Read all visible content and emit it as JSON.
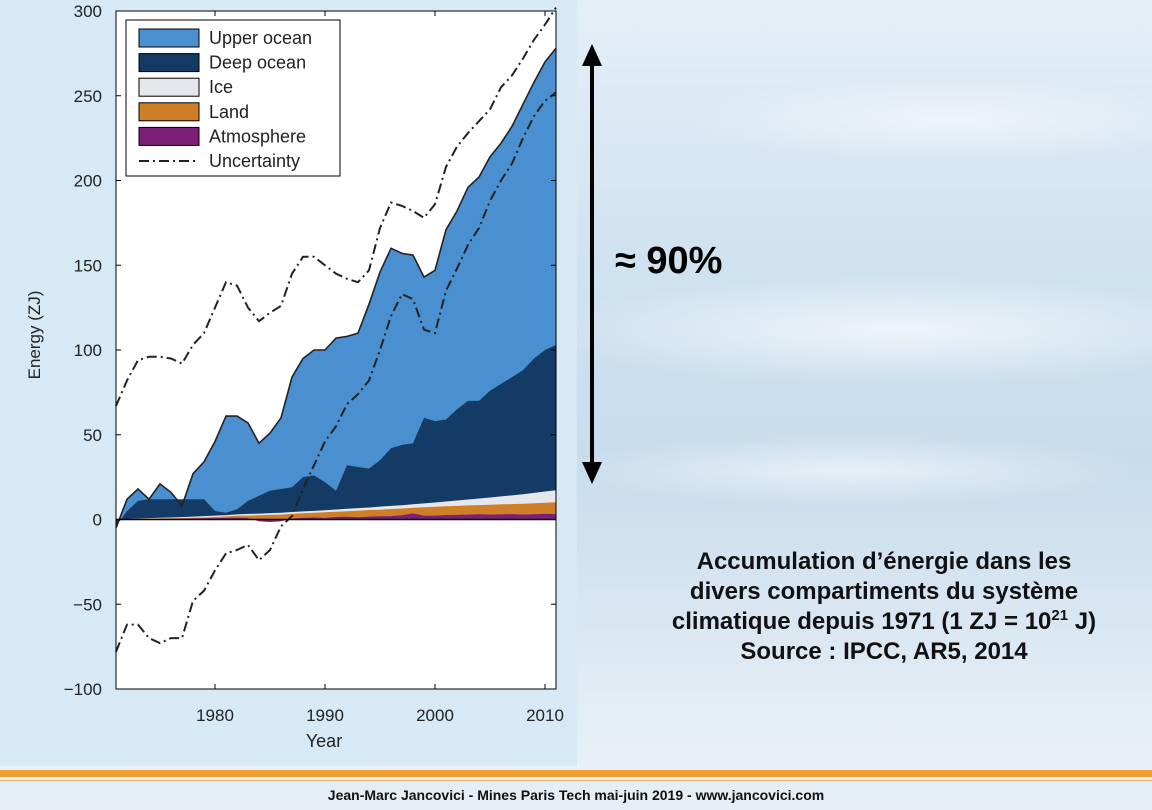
{
  "headline": "≈ 90%",
  "caption": {
    "line1": "Accumulation d’énergie dans les",
    "line2": "divers compartiments du système",
    "line3_prefix": "climatique depuis 1971 (1 ZJ = 10",
    "line3_sup": "21",
    "line3_suffix": " J)",
    "line4": "Source : IPCC, AR5, 2014"
  },
  "footer": "Jean-Marc Jancovici - Mines Paris Tech mai-juin 2019 - www.jancovici.com",
  "colors": {
    "upper_ocean": "#4a90d0",
    "deep_ocean": "#143a66",
    "ice": "#e6e7ea",
    "land": "#cf7f27",
    "atmosphere": "#7c1f78",
    "uncertainty": "#222222"
  },
  "chart_data": {
    "type": "area",
    "xlabel": "Year",
    "ylabel": "Energy (ZJ)",
    "xlim": [
      1971,
      2011
    ],
    "ylim": [
      -100,
      300
    ],
    "x_ticks": [
      1980,
      1990,
      2000,
      2010
    ],
    "y_ticks": [
      300,
      250,
      200,
      150,
      100,
      50,
      0,
      -50,
      -100
    ],
    "stacking": "cumulative",
    "legend_position": "top-left",
    "legend": [
      "Upper ocean",
      "Deep ocean",
      "Ice",
      "Land",
      "Atmosphere",
      "Uncertainty"
    ],
    "x": [
      1971,
      1972,
      1973,
      1974,
      1975,
      1976,
      1977,
      1978,
      1979,
      1980,
      1981,
      1982,
      1983,
      1984,
      1985,
      1986,
      1987,
      1988,
      1989,
      1990,
      1991,
      1992,
      1993,
      1994,
      1995,
      1996,
      1997,
      1998,
      1999,
      2000,
      2001,
      2002,
      2003,
      2004,
      2005,
      2006,
      2007,
      2008,
      2009,
      2010,
      2011
    ],
    "series": [
      {
        "name": "Atmosphere",
        "color_key": "atmosphere",
        "cumulative": [
          0,
          0.2,
          0.3,
          0.3,
          0.4,
          0.3,
          0.5,
          0.6,
          0.7,
          0.8,
          0.9,
          1.0,
          0.8,
          -1.0,
          -1.5,
          -1.0,
          0.5,
          1.0,
          1.2,
          0.9,
          1.5,
          1.6,
          1.3,
          1.7,
          1.9,
          2.0,
          2.5,
          3.6,
          2.2,
          2.3,
          2.6,
          2.7,
          2.9,
          3.1,
          2.9,
          3.0,
          3.2,
          2.9,
          3.1,
          3.3,
          3.2
        ]
      },
      {
        "name": "Land",
        "color_key": "land",
        "cumulative": [
          0,
          0.2,
          0.4,
          0.5,
          0.6,
          0.7,
          0.8,
          1.0,
          1.2,
          1.5,
          1.8,
          2.2,
          2.3,
          2.5,
          2.7,
          2.9,
          3.3,
          3.7,
          4.0,
          4.3,
          4.6,
          4.9,
          5.2,
          5.6,
          5.8,
          6.2,
          6.5,
          6.9,
          7.2,
          7.5,
          7.8,
          8.0,
          8.3,
          8.5,
          8.7,
          8.9,
          9.1,
          9.3,
          9.6,
          9.9,
          10.2
        ]
      },
      {
        "name": "Ice",
        "color_key": "ice",
        "cumulative": [
          0,
          0.3,
          0.6,
          0.8,
          1.0,
          1.2,
          1.4,
          1.7,
          2.0,
          2.3,
          2.6,
          3.0,
          3.3,
          3.5,
          3.8,
          4.0,
          4.4,
          4.8,
          5.1,
          5.5,
          5.9,
          6.3,
          6.7,
          7.1,
          7.6,
          8.0,
          8.4,
          9.0,
          9.5,
          10.0,
          10.6,
          11.2,
          11.8,
          12.4,
          13.0,
          13.6,
          14.2,
          14.9,
          15.7,
          16.5,
          17.3
        ]
      },
      {
        "name": "Deep ocean",
        "color_key": "deep_ocean",
        "cumulative": [
          -4,
          5,
          11,
          12,
          12,
          12,
          12,
          12,
          12,
          5,
          4,
          6,
          11,
          14,
          17,
          18,
          19,
          25,
          26,
          22,
          17,
          32,
          31,
          30,
          35,
          42,
          44,
          45,
          60,
          58,
          59,
          65,
          70,
          70,
          76,
          80,
          84,
          88,
          95,
          100,
          103
        ]
      },
      {
        "name": "Upper ocean",
        "color_key": "upper_ocean",
        "cumulative": [
          -5,
          12,
          18,
          12,
          21,
          16,
          8,
          27,
          34,
          46,
          61,
          61,
          57,
          45,
          51,
          60,
          84,
          95,
          100,
          100,
          107,
          108,
          110,
          127,
          146,
          160,
          157,
          156,
          143,
          147,
          171,
          182,
          196,
          202,
          214,
          222,
          232,
          245,
          258,
          270,
          278
        ]
      }
    ],
    "uncertainty": {
      "name": "Uncertainty",
      "upper": [
        67,
        82,
        94,
        96,
        96,
        95,
        92,
        103,
        110,
        125,
        140,
        138,
        125,
        117,
        122,
        126,
        145,
        155,
        155,
        150,
        145,
        142,
        140,
        147,
        172,
        187,
        185,
        182,
        178,
        186,
        208,
        220,
        228,
        235,
        242,
        255,
        262,
        272,
        283,
        292,
        302
      ],
      "lower": [
        -78,
        -62,
        -62,
        -70,
        -73,
        -70,
        -70,
        -48,
        -42,
        -30,
        -20,
        -18,
        -15,
        -24,
        -18,
        -4,
        2,
        18,
        32,
        46,
        55,
        68,
        74,
        82,
        100,
        120,
        133,
        130,
        112,
        110,
        135,
        148,
        162,
        172,
        188,
        200,
        210,
        225,
        238,
        247,
        252
      ]
    }
  }
}
